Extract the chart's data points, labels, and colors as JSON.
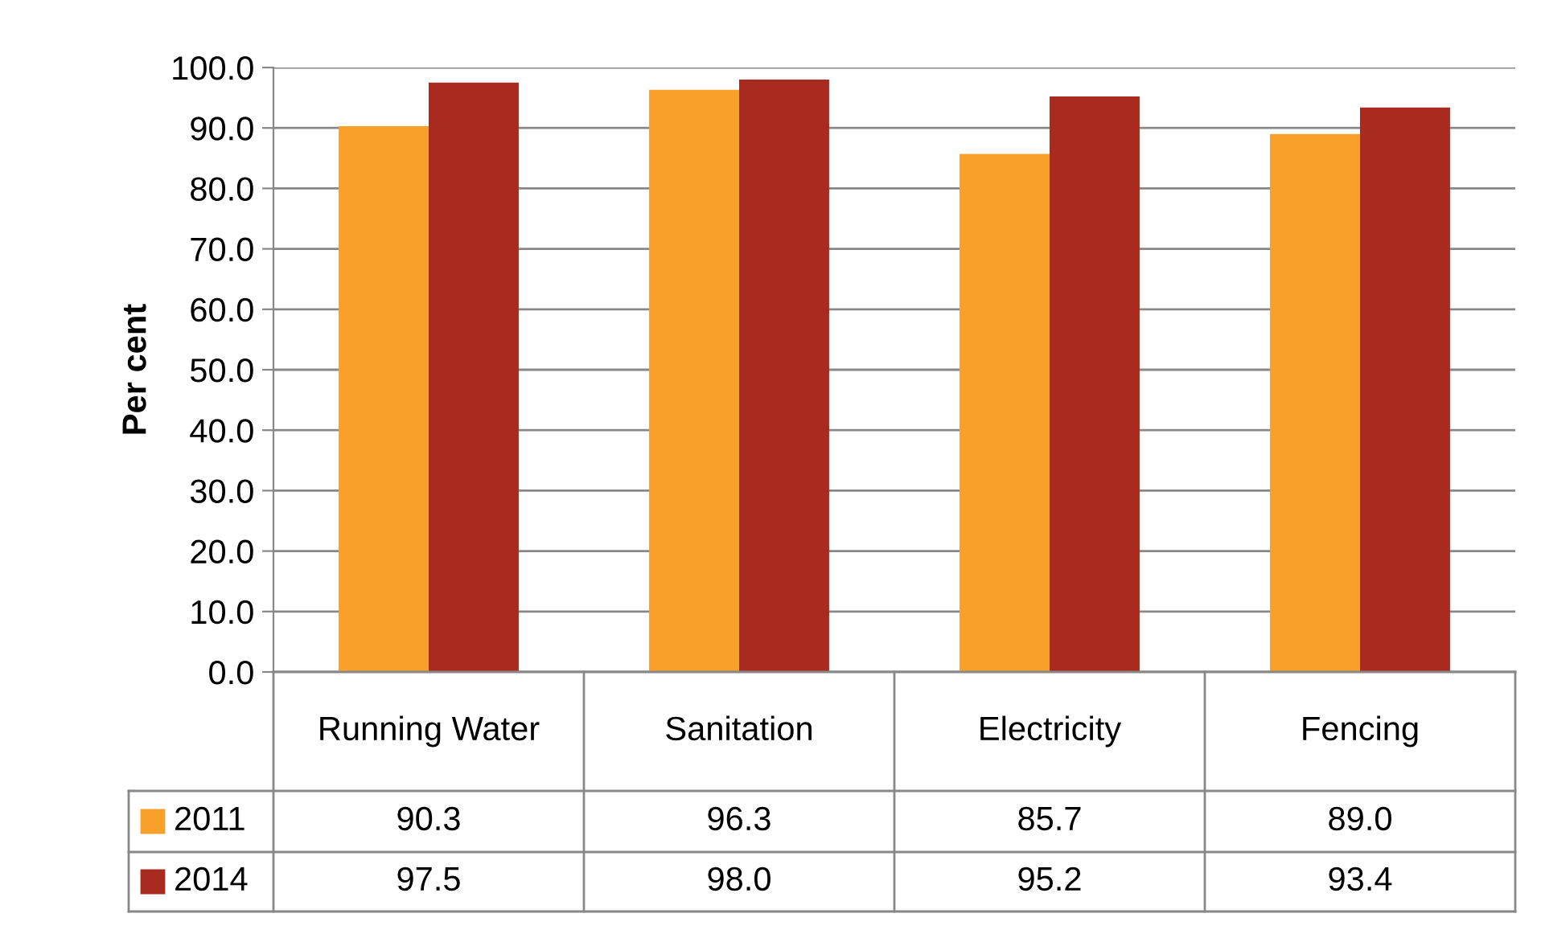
{
  "chart_data": {
    "type": "bar",
    "ylabel": "Per cent",
    "categories": [
      "Running Water",
      "Sanitation",
      "Electricity",
      "Fencing"
    ],
    "series": [
      {
        "name": "2011",
        "color": "#f8a02a",
        "values": [
          90.3,
          96.3,
          85.7,
          89.0
        ],
        "value_labels": [
          "90.3",
          "96.3",
          "85.7",
          "89.0"
        ]
      },
      {
        "name": "2014",
        "color": "#a92a1f",
        "values": [
          97.5,
          98.0,
          95.2,
          93.4
        ],
        "value_labels": [
          "97.5",
          "98.0",
          "95.2",
          "93.4"
        ]
      }
    ],
    "ylim": [
      0,
      100
    ],
    "yticks": [
      {
        "value": 0,
        "label": "0.0"
      },
      {
        "value": 10,
        "label": "10.0"
      },
      {
        "value": 20,
        "label": "20.0"
      },
      {
        "value": 30,
        "label": "30.0"
      },
      {
        "value": 40,
        "label": "40.0"
      },
      {
        "value": 50,
        "label": "50.0"
      },
      {
        "value": 60,
        "label": "60.0"
      },
      {
        "value": 70,
        "label": "70.0"
      },
      {
        "value": 80,
        "label": "80.0"
      },
      {
        "value": 90,
        "label": "90.0"
      },
      {
        "value": 100,
        "label": "100.0"
      }
    ],
    "grid": "y",
    "legend": "bottom left"
  }
}
